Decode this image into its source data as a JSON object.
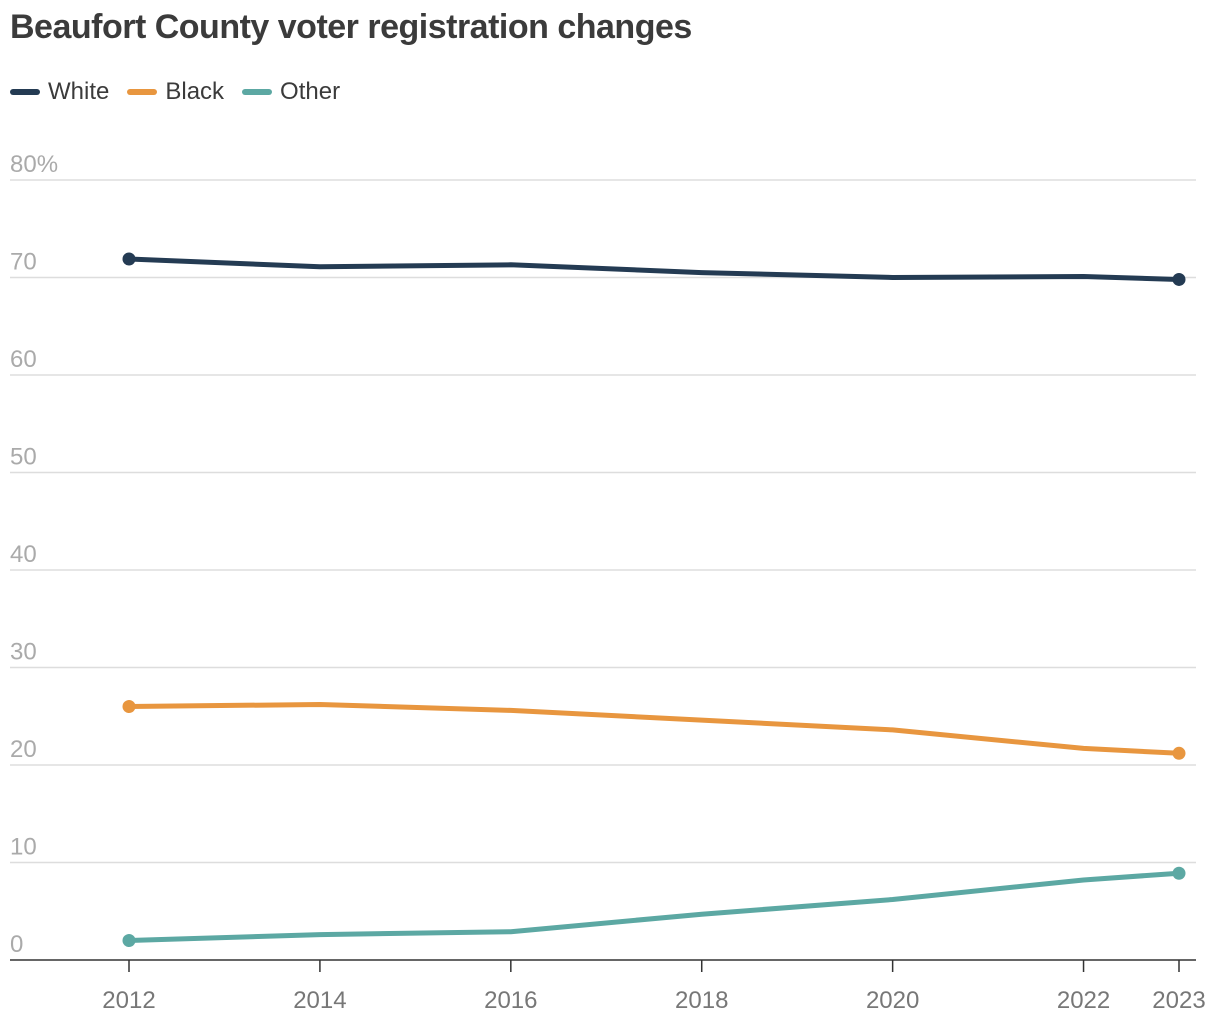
{
  "chart_data": {
    "type": "line",
    "title": "Beaufort County voter registration changes",
    "xlabel": "",
    "ylabel": "",
    "x": [
      2012,
      2014,
      2016,
      2018,
      2020,
      2022,
      2023
    ],
    "x_tick_labels": [
      "2012",
      "2014",
      "2016",
      "2018",
      "2020",
      "2022",
      "2023"
    ],
    "y_ticks": [
      0,
      10,
      20,
      30,
      40,
      50,
      60,
      70,
      80
    ],
    "y_tick_labels": [
      "0",
      "10",
      "20",
      "30",
      "40",
      "50",
      "60",
      "70",
      "80%"
    ],
    "ylim": [
      0,
      80
    ],
    "xlim": [
      2010.8,
      2023.3
    ],
    "grid": true,
    "legend_position": "top-left",
    "series": [
      {
        "name": "White",
        "color": "#243b53",
        "values": [
          71.9,
          71.1,
          71.3,
          70.5,
          70.0,
          70.1,
          69.8
        ]
      },
      {
        "name": "Black",
        "color": "#e8963f",
        "values": [
          26.0,
          26.2,
          25.6,
          24.6,
          23.6,
          21.7,
          21.2
        ]
      },
      {
        "name": "Other",
        "color": "#5ca8a3",
        "values": [
          2.0,
          2.6,
          2.9,
          4.7,
          6.2,
          8.2,
          8.9
        ]
      }
    ]
  }
}
